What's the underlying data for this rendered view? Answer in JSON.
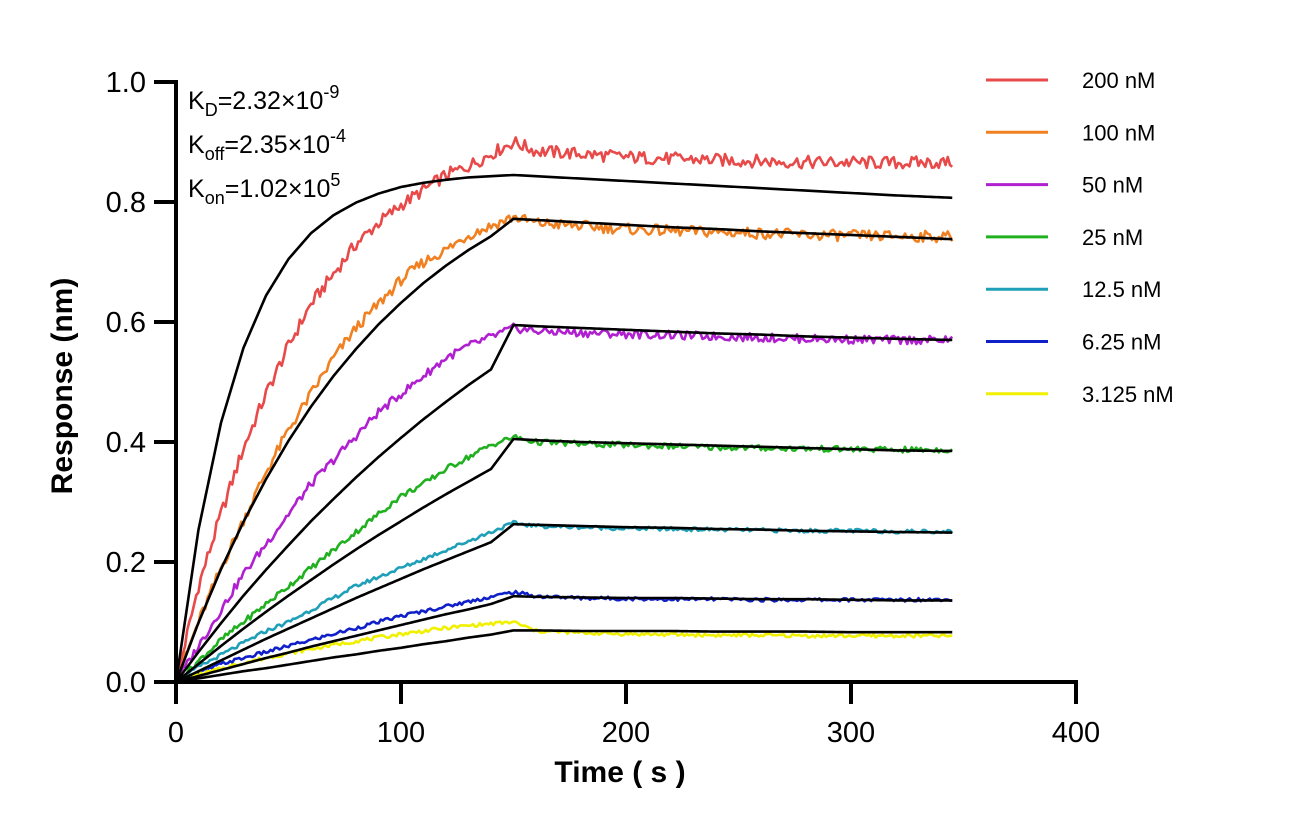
{
  "chart_data": {
    "type": "line",
    "title": "",
    "xlabel": "Time ( s )",
    "ylabel": "Response (nm)",
    "xlim": [
      0,
      400
    ],
    "ylim": [
      0,
      1.0
    ],
    "x_ticks": [
      0,
      100,
      200,
      300,
      400
    ],
    "y_ticks": [
      0.0,
      0.2,
      0.4,
      0.6,
      0.8,
      1.0
    ],
    "x_tick_labels": [
      "0",
      "100",
      "200",
      "300",
      "400"
    ],
    "y_tick_labels": [
      "0.0",
      "0.2",
      "0.4",
      "0.6",
      "0.8",
      "1.0"
    ],
    "grid": false,
    "legend_position": "top-right",
    "annotations": [
      {
        "base": "K",
        "sub": "D",
        "value": "=2.32×10",
        "exp": "-9"
      },
      {
        "base": "K",
        "sub": "off",
        "value": "=2.35×10",
        "exp": "-4"
      },
      {
        "base": "K",
        "sub": "on",
        "value": "=1.02×10",
        "exp": "5"
      }
    ],
    "fit_color": "#000000",
    "series": [
      {
        "name": "200 nM",
        "color": "#e84a4a",
        "x": [
          0,
          10,
          20,
          30,
          40,
          50,
          60,
          70,
          80,
          90,
          100,
          110,
          120,
          130,
          140,
          150,
          160,
          180,
          200,
          220,
          240,
          260,
          280,
          300,
          320,
          345
        ],
        "y": [
          0,
          0.16,
          0.28,
          0.39,
          0.48,
          0.56,
          0.63,
          0.68,
          0.73,
          0.765,
          0.795,
          0.82,
          0.845,
          0.86,
          0.88,
          0.9,
          0.885,
          0.88,
          0.875,
          0.872,
          0.87,
          0.868,
          0.866,
          0.866,
          0.865,
          0.866
        ],
        "fit": [
          0,
          0.254,
          0.432,
          0.557,
          0.644,
          0.705,
          0.748,
          0.778,
          0.799,
          0.814,
          0.825,
          0.832,
          0.837,
          0.841,
          0.843,
          0.845,
          0.843,
          0.839,
          0.835,
          0.831,
          0.827,
          0.823,
          0.819,
          0.815,
          0.811,
          0.807
        ]
      },
      {
        "name": "100 nM",
        "color": "#f08020",
        "x": [
          0,
          10,
          20,
          30,
          40,
          50,
          60,
          70,
          80,
          90,
          100,
          110,
          120,
          130,
          140,
          150,
          160,
          180,
          200,
          220,
          240,
          260,
          280,
          300,
          320,
          345
        ],
        "y": [
          0,
          0.1,
          0.19,
          0.27,
          0.35,
          0.42,
          0.48,
          0.54,
          0.59,
          0.63,
          0.67,
          0.7,
          0.72,
          0.745,
          0.76,
          0.775,
          0.765,
          0.76,
          0.755,
          0.752,
          0.75,
          0.748,
          0.745,
          0.744,
          0.743,
          0.742
        ],
        "fit": [
          0,
          0.099,
          0.188,
          0.267,
          0.338,
          0.402,
          0.459,
          0.51,
          0.555,
          0.596,
          0.632,
          0.665,
          0.694,
          0.72,
          0.743,
          0.772,
          0.77,
          0.766,
          0.762,
          0.758,
          0.755,
          0.751,
          0.748,
          0.745,
          0.742,
          0.738
        ]
      },
      {
        "name": "50 nM",
        "color": "#b020d0",
        "x": [
          0,
          10,
          20,
          30,
          40,
          50,
          60,
          70,
          80,
          90,
          100,
          110,
          120,
          130,
          140,
          150,
          160,
          180,
          200,
          220,
          240,
          260,
          280,
          300,
          320,
          345
        ],
        "y": [
          0,
          0.06,
          0.12,
          0.18,
          0.23,
          0.28,
          0.33,
          0.37,
          0.41,
          0.45,
          0.48,
          0.51,
          0.54,
          0.56,
          0.575,
          0.59,
          0.585,
          0.582,
          0.58,
          0.578,
          0.576,
          0.574,
          0.572,
          0.571,
          0.57,
          0.57
        ],
        "fit": [
          0,
          0.05,
          0.098,
          0.144,
          0.187,
          0.228,
          0.268,
          0.305,
          0.341,
          0.375,
          0.407,
          0.438,
          0.467,
          0.495,
          0.521,
          0.595,
          0.593,
          0.59,
          0.587,
          0.584,
          0.581,
          0.579,
          0.576,
          0.574,
          0.572,
          0.57
        ]
      },
      {
        "name": "25 nM",
        "color": "#20b020",
        "x": [
          0,
          10,
          20,
          30,
          40,
          50,
          60,
          70,
          80,
          90,
          100,
          110,
          120,
          130,
          140,
          150,
          160,
          180,
          200,
          220,
          240,
          260,
          280,
          300,
          320,
          345
        ],
        "y": [
          0,
          0.035,
          0.07,
          0.1,
          0.13,
          0.16,
          0.19,
          0.22,
          0.25,
          0.28,
          0.31,
          0.33,
          0.355,
          0.375,
          0.395,
          0.408,
          0.4,
          0.397,
          0.395,
          0.393,
          0.391,
          0.39,
          0.389,
          0.388,
          0.387,
          0.387
        ],
        "fit": [
          0,
          0.03,
          0.06,
          0.089,
          0.117,
          0.144,
          0.17,
          0.196,
          0.221,
          0.245,
          0.268,
          0.291,
          0.313,
          0.334,
          0.355,
          0.405,
          0.403,
          0.4,
          0.398,
          0.396,
          0.394,
          0.392,
          0.39,
          0.388,
          0.386,
          0.385
        ]
      },
      {
        "name": "12.5 nM",
        "color": "#20a0b8",
        "x": [
          0,
          10,
          20,
          30,
          40,
          50,
          60,
          70,
          80,
          90,
          100,
          110,
          120,
          130,
          140,
          150,
          160,
          180,
          200,
          220,
          240,
          260,
          280,
          300,
          320,
          345
        ],
        "y": [
          0,
          0.025,
          0.045,
          0.065,
          0.085,
          0.1,
          0.12,
          0.14,
          0.16,
          0.175,
          0.19,
          0.205,
          0.22,
          0.235,
          0.25,
          0.265,
          0.26,
          0.258,
          0.256,
          0.255,
          0.254,
          0.253,
          0.252,
          0.252,
          0.251,
          0.251
        ],
        "fit": [
          0,
          0.018,
          0.036,
          0.054,
          0.072,
          0.089,
          0.106,
          0.123,
          0.14,
          0.156,
          0.172,
          0.188,
          0.203,
          0.218,
          0.233,
          0.263,
          0.262,
          0.26,
          0.258,
          0.257,
          0.255,
          0.254,
          0.252,
          0.251,
          0.25,
          0.249
        ]
      },
      {
        "name": "6.25 nM",
        "color": "#1020c8",
        "x": [
          0,
          10,
          20,
          30,
          40,
          50,
          60,
          70,
          80,
          90,
          100,
          110,
          120,
          130,
          140,
          150,
          160,
          180,
          200,
          220,
          240,
          260,
          280,
          300,
          320,
          345
        ],
        "y": [
          0,
          0.015,
          0.03,
          0.04,
          0.05,
          0.06,
          0.07,
          0.08,
          0.09,
          0.1,
          0.11,
          0.118,
          0.126,
          0.134,
          0.142,
          0.15,
          0.143,
          0.14,
          0.139,
          0.138,
          0.138,
          0.137,
          0.137,
          0.137,
          0.137,
          0.138
        ],
        "fit": [
          0,
          0.01,
          0.02,
          0.03,
          0.04,
          0.049,
          0.059,
          0.068,
          0.077,
          0.086,
          0.095,
          0.104,
          0.113,
          0.121,
          0.13,
          0.143,
          0.142,
          0.141,
          0.14,
          0.14,
          0.139,
          0.138,
          0.138,
          0.137,
          0.136,
          0.136
        ]
      },
      {
        "name": "3.125 nM",
        "color": "#f0f000",
        "x": [
          0,
          10,
          20,
          30,
          40,
          50,
          60,
          70,
          80,
          90,
          100,
          110,
          120,
          130,
          140,
          150,
          160,
          180,
          200,
          220,
          240,
          260,
          280,
          300,
          320,
          345
        ],
        "y": [
          0,
          0.012,
          0.022,
          0.032,
          0.04,
          0.048,
          0.055,
          0.062,
          0.068,
          0.074,
          0.08,
          0.085,
          0.09,
          0.094,
          0.097,
          0.1,
          0.085,
          0.082,
          0.08,
          0.079,
          0.078,
          0.078,
          0.077,
          0.077,
          0.077,
          0.077
        ],
        "fit": [
          0,
          0.006,
          0.012,
          0.018,
          0.023,
          0.029,
          0.035,
          0.041,
          0.046,
          0.052,
          0.057,
          0.063,
          0.068,
          0.074,
          0.079,
          0.086,
          0.086,
          0.085,
          0.085,
          0.085,
          0.084,
          0.084,
          0.084,
          0.083,
          0.083,
          0.083
        ]
      }
    ]
  }
}
